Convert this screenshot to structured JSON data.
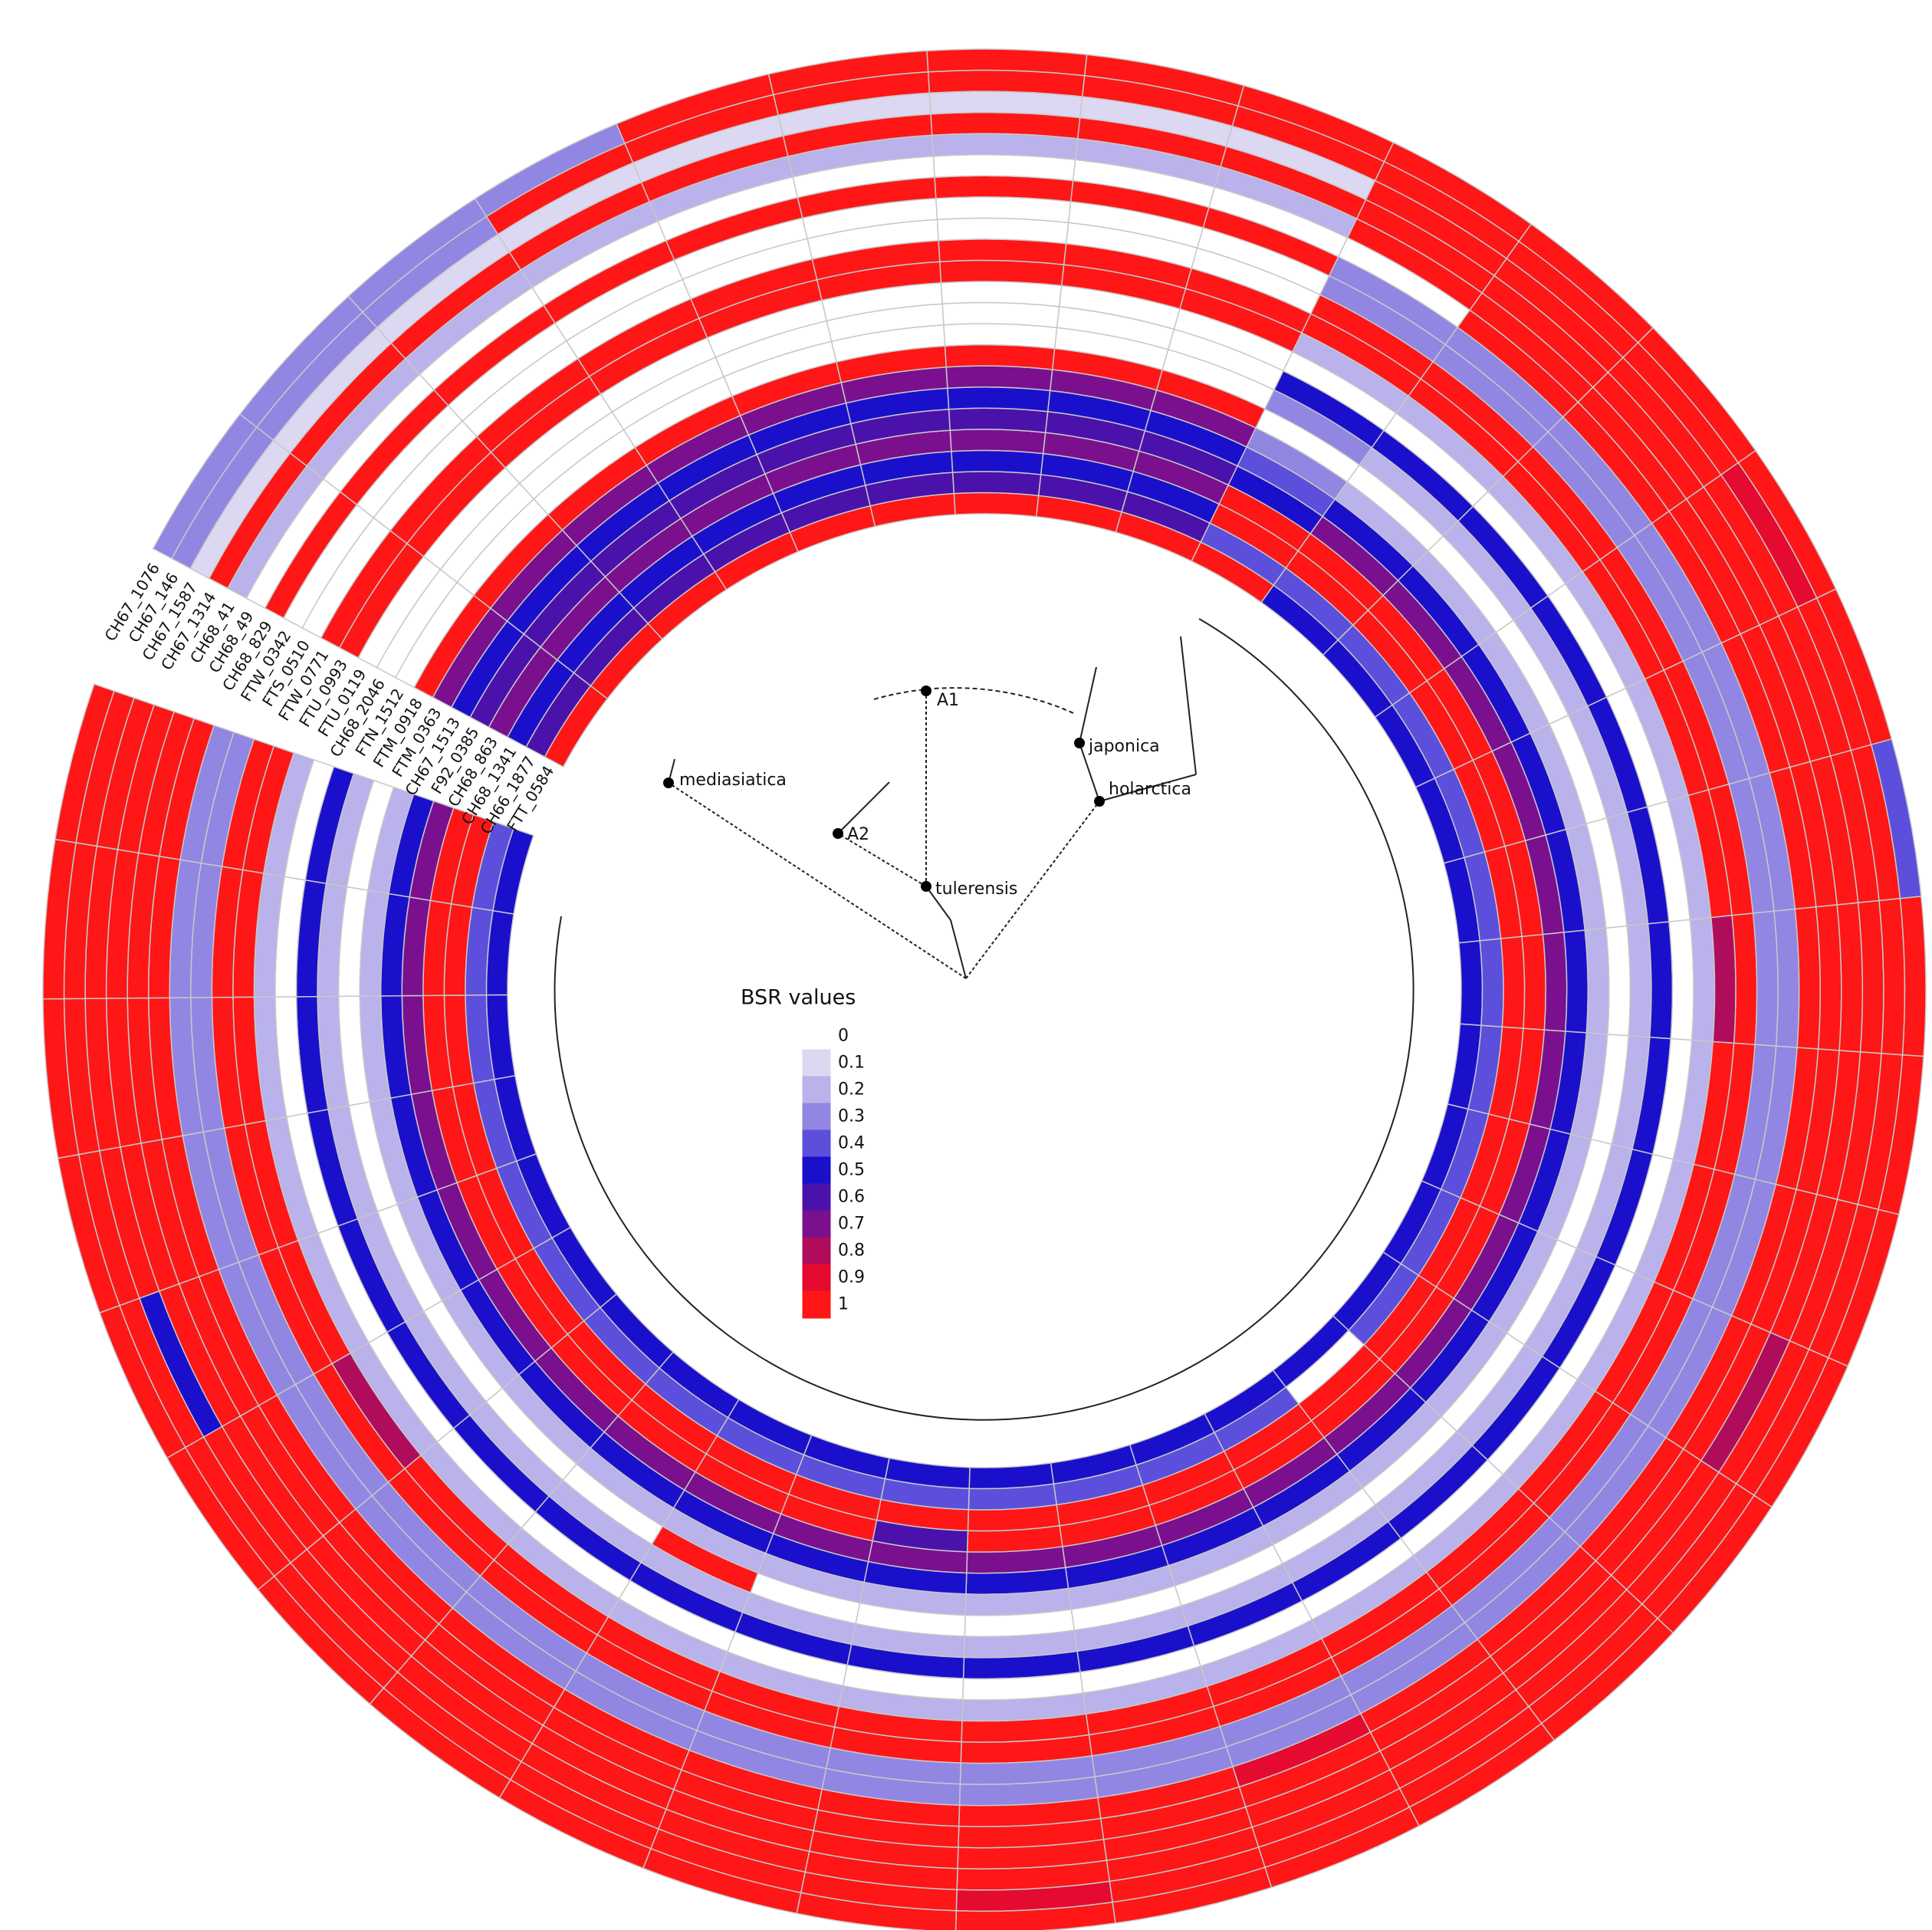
{
  "chart_data": {
    "type": "heatmap",
    "series": [
      {
        "name": "FTT_0584",
        "values": [
          1,
          1,
          1,
          1,
          1,
          1,
          1,
          1,
          1,
          1,
          0.5,
          0.5,
          0.5,
          0.5,
          0.5,
          0.5,
          0.5,
          0.5,
          0.5,
          0.5,
          0.5,
          0.5,
          0.5,
          0.5,
          0.5,
          0.5,
          0.5,
          0.5,
          0.5,
          0.5,
          0.5,
          0.5,
          0.5,
          0.5,
          0.5,
          0.5
        ]
      },
      {
        "name": "CH66_1877",
        "values": [
          0.6,
          0.6,
          0.6,
          0.6,
          0.6,
          0.6,
          0.6,
          0.6,
          0.6,
          0.4,
          0.4,
          0.4,
          0.4,
          0.4,
          0.4,
          0.4,
          0.4,
          0.4,
          0.4,
          0.4,
          0,
          0.4,
          0.4,
          0.4,
          0.4,
          0.4,
          0.4,
          0.4,
          0.4,
          0.4,
          0.4,
          0.4,
          0.4,
          0.4,
          0.4,
          0.4
        ]
      },
      {
        "name": "CH68_1341",
        "values": [
          0.5,
          0.5,
          0.5,
          0.5,
          0.5,
          0.5,
          0.5,
          0.5,
          0.5,
          1,
          1,
          1,
          1,
          1,
          1,
          1,
          1,
          1,
          1,
          1,
          1,
          1,
          1,
          1,
          1,
          1,
          1,
          1,
          1,
          1,
          1,
          1,
          1,
          1,
          1,
          1
        ]
      },
      {
        "name": "CH68_863",
        "values": [
          0.7,
          0.7,
          0.7,
          0.7,
          0.7,
          0.7,
          0.7,
          0.7,
          0.7,
          1,
          1,
          1,
          1,
          1,
          1,
          1,
          1,
          1,
          1,
          1,
          1,
          1,
          1,
          1,
          1,
          0.6,
          1,
          1,
          1,
          1,
          1,
          1,
          1,
          1,
          1,
          1
        ]
      },
      {
        "name": "F92_0385",
        "values": [
          0.6,
          0.6,
          0.6,
          0.6,
          0.6,
          0.6,
          0.6,
          0.6,
          0.6,
          0.5,
          0.7,
          0.7,
          0.7,
          0.7,
          0.7,
          0.7,
          0.7,
          0.7,
          0.7,
          0.7,
          0.7,
          0.7,
          0.7,
          0.7,
          0.7,
          0.7,
          0.7,
          0.7,
          0.7,
          0.7,
          0.7,
          0.7,
          0.7,
          0.7,
          0.7,
          0.7
        ]
      },
      {
        "name": "CH67_1513",
        "values": [
          0.5,
          0.5,
          0.5,
          0.5,
          0.5,
          0.5,
          0.5,
          0.5,
          0.5,
          0.4,
          0.5,
          0.5,
          0.5,
          0.5,
          0.5,
          0.5,
          0.5,
          0.5,
          0.5,
          0.5,
          0.5,
          0.5,
          0.5,
          0.5,
          0.5,
          0.5,
          0.5,
          0.5,
          0.5,
          0.5,
          0.5,
          0.5,
          0.5,
          0.5,
          0.5,
          0.5
        ]
      },
      {
        "name": "FTM_0363",
        "values": [
          0.7,
          0.7,
          0.7,
          0.7,
          0.7,
          0.7,
          0.7,
          0.7,
          0.7,
          0.3,
          0.2,
          0.2,
          0.2,
          0.2,
          0.2,
          0.2,
          0.2,
          0.2,
          0.2,
          0.2,
          0.2,
          0.2,
          0.2,
          0.2,
          0.2,
          0.2,
          0.2,
          0.2,
          0.2,
          0.2,
          0.2,
          0.2,
          0.2,
          0.2,
          0.2,
          0.2
        ]
      },
      {
        "name": "FTM_0918",
        "values": [
          1,
          1,
          1,
          1,
          1,
          1,
          1,
          1,
          1,
          0,
          0,
          0,
          0,
          0,
          0,
          0,
          0,
          0,
          0,
          0,
          0,
          0,
          0,
          0,
          0,
          0,
          0,
          1,
          0,
          0,
          0,
          0,
          0,
          0,
          0,
          0
        ]
      },
      {
        "name": "FTN_1512",
        "values": [
          0,
          0,
          0,
          0,
          0,
          0,
          0,
          0,
          0,
          0.3,
          0.2,
          0.2,
          0.2,
          0.2,
          0.2,
          0.2,
          0.2,
          0.2,
          0.2,
          0.2,
          0.2,
          0.2,
          0.2,
          0.2,
          0.2,
          0.2,
          0.2,
          0.2,
          0.2,
          0.2,
          0.2,
          0.2,
          0.2,
          0.2,
          0.2,
          0.2
        ]
      },
      {
        "name": "CH68_2046",
        "values": [
          0,
          0,
          0,
          0,
          0,
          0,
          0,
          0,
          0,
          0.5,
          0.5,
          0.5,
          0.5,
          0.5,
          0.5,
          0.5,
          0.5,
          0.5,
          0.5,
          0.5,
          0.5,
          0.5,
          0.5,
          0.5,
          0.5,
          0.5,
          0.5,
          0.5,
          0.5,
          0.5,
          0.5,
          0.5,
          0.5,
          0.5,
          0.5,
          0.5
        ]
      },
      {
        "name": "FTU_0119",
        "values": [
          0,
          0,
          0,
          0,
          0,
          0,
          0,
          0,
          0,
          0,
          0,
          0,
          0,
          0,
          0,
          0,
          0,
          0,
          0,
          0,
          0,
          0,
          0,
          0,
          0,
          0,
          0,
          0,
          0,
          0,
          0,
          0,
          0,
          0,
          0,
          0
        ]
      },
      {
        "name": "FTU_0993",
        "values": [
          1,
          1,
          1,
          1,
          1,
          1,
          1,
          1,
          1,
          0.2,
          0.2,
          0.2,
          0.2,
          0.2,
          0.2,
          0.2,
          0.2,
          0.2,
          0.2,
          0.2,
          0.2,
          0.2,
          0.2,
          0.2,
          0.2,
          0.2,
          0.2,
          0.2,
          0.2,
          0.2,
          0.2,
          0.2,
          0.2,
          0.2,
          0.2,
          0.2
        ]
      },
      {
        "name": "FTW_0771",
        "values": [
          1,
          1,
          1,
          1,
          1,
          1,
          1,
          1,
          1,
          1,
          1,
          1,
          1,
          1,
          1,
          0.8,
          1,
          1,
          1,
          1,
          1,
          1,
          1,
          1,
          1,
          1,
          1,
          1,
          1,
          1,
          0.8,
          1,
          1,
          1,
          1,
          1
        ]
      },
      {
        "name": "FTS_0510",
        "values": [
          0,
          0,
          0,
          0,
          0,
          0,
          0,
          0,
          0,
          1,
          1,
          1,
          1,
          1,
          1,
          1,
          1,
          1,
          1,
          1,
          1,
          1,
          1,
          1,
          1,
          1,
          1,
          1,
          1,
          1,
          1,
          1,
          1,
          1,
          1,
          1
        ]
      },
      {
        "name": "FTW_0342",
        "values": [
          0,
          0,
          0,
          0,
          0,
          0,
          0,
          0,
          0,
          0.3,
          0.3,
          0.3,
          0.3,
          0.3,
          0.3,
          0.3,
          0.3,
          0.3,
          0.3,
          0.3,
          0.3,
          0.3,
          0.3,
          0.3,
          0.3,
          0.3,
          0.3,
          0.3,
          0.3,
          0.3,
          0.3,
          0.3,
          0.3,
          0.3,
          0.3,
          0.3
        ]
      },
      {
        "name": "CH68_829",
        "values": [
          1,
          1,
          1,
          1,
          1,
          1,
          1,
          1,
          1,
          0.3,
          0.3,
          0.3,
          0.3,
          0.3,
          0.3,
          0.3,
          0.3,
          0.3,
          0.3,
          0.3,
          0.3,
          0.3,
          0.3,
          0.3,
          0.3,
          0.3,
          0.3,
          0.3,
          0.3,
          0.3,
          0.3,
          0.3,
          0.3,
          0.3,
          0.3,
          0.3
        ]
      },
      {
        "name": "CH68_49",
        "values": [
          0,
          0,
          0,
          0,
          0,
          0,
          0,
          0,
          0,
          0,
          1,
          1,
          1,
          1,
          1,
          1,
          1,
          1,
          1,
          1,
          1,
          1,
          0.9,
          1,
          1,
          1,
          1,
          1,
          1,
          1,
          1,
          1,
          1,
          1,
          1,
          1
        ]
      },
      {
        "name": "CH68_41",
        "values": [
          0.2,
          0.2,
          0.2,
          0.2,
          0.2,
          0.2,
          0.2,
          0.2,
          0.2,
          1,
          1,
          1,
          1,
          1,
          1,
          1,
          1,
          1,
          1,
          1,
          1,
          1,
          1,
          1,
          1,
          1,
          1,
          1,
          1,
          1,
          1,
          1,
          1,
          1,
          1,
          1
        ]
      },
      {
        "name": "CH67_1314",
        "values": [
          1,
          1,
          1,
          1,
          1,
          1,
          1,
          1,
          1,
          1,
          1,
          1,
          1,
          1,
          1,
          1,
          1,
          1,
          0.8,
          1,
          1,
          1,
          1,
          1,
          1,
          1,
          1,
          1,
          1,
          1,
          1,
          1,
          1,
          1,
          1,
          1
        ]
      },
      {
        "name": "CH67_1587",
        "values": [
          0.1,
          0.1,
          0.1,
          0.1,
          0.1,
          0.1,
          0.1,
          0.1,
          0.1,
          1,
          1,
          1,
          1,
          1,
          1,
          1,
          1,
          1,
          1,
          1,
          1,
          1,
          1,
          1,
          1,
          1,
          1,
          1,
          1,
          1,
          1,
          0.5,
          1,
          1,
          1,
          1
        ]
      },
      {
        "name": "CH67_146",
        "values": [
          0.3,
          0.3,
          0.3,
          1,
          1,
          1,
          1,
          1,
          1,
          1,
          1,
          1,
          0.9,
          1,
          1,
          1,
          1,
          1,
          1,
          1,
          1,
          1,
          1,
          1,
          0.9,
          1,
          1,
          1,
          1,
          1,
          1,
          1,
          1,
          1,
          1,
          1
        ]
      },
      {
        "name": "CH67_1076",
        "values": [
          0.3,
          0.3,
          0.3,
          0.3,
          1,
          1,
          1,
          1,
          1,
          1,
          1,
          1,
          1,
          1,
          0.4,
          1,
          1,
          1,
          1,
          1,
          1,
          1,
          1,
          1,
          1,
          1,
          1,
          1,
          1,
          1,
          1,
          1,
          1,
          1,
          1,
          1
        ]
      }
    ],
    "legend": {
      "title": "BSR values",
      "values": [
        0,
        0.1,
        0.2,
        0.3,
        0.4,
        0.5,
        0.6,
        0.7,
        0.8,
        0.9,
        1
      ],
      "colors": [
        "#ffffff",
        "#dcd8f2",
        "#bab2ea",
        "#9186e2",
        "#5b4fdb",
        "#1a10cc",
        "#4a12aa",
        "#7a108e",
        "#b00c5c",
        "#e40a30",
        "#ff1616"
      ]
    }
  },
  "tree": {
    "clades": [
      "A1",
      "A2",
      "mediasiatica",
      "tulerensis",
      "japonica",
      "holarctica"
    ]
  }
}
